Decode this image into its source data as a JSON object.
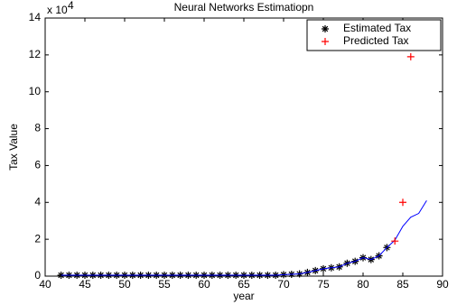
{
  "chart_data": {
    "type": "line",
    "title": "Neural Networks Estimatiopn",
    "xlabel": "year",
    "ylabel": "Tax Value",
    "y_scale": {
      "base": "x 10",
      "exponent": "4"
    },
    "xlim": [
      40,
      90
    ],
    "xticks": [
      40,
      45,
      50,
      55,
      60,
      65,
      70,
      75,
      80,
      85,
      90
    ],
    "ylim": [
      0,
      14
    ],
    "yticks": [
      0,
      2,
      4,
      6,
      8,
      10,
      12,
      14
    ],
    "legend": "top-right",
    "series": [
      {
        "name": "Estimated Tax",
        "color": "#000000",
        "marker": "star",
        "x": [
          42,
          43,
          44,
          45,
          46,
          47,
          48,
          49,
          50,
          51,
          52,
          53,
          54,
          55,
          56,
          57,
          58,
          59,
          60,
          61,
          62,
          63,
          64,
          65,
          66,
          67,
          68,
          69,
          70,
          71,
          72,
          73,
          74,
          75,
          76,
          77,
          78,
          79,
          80,
          81,
          82,
          83
        ],
        "values": [
          0.05,
          0.05,
          0.05,
          0.05,
          0.05,
          0.05,
          0.05,
          0.05,
          0.05,
          0.05,
          0.05,
          0.05,
          0.05,
          0.05,
          0.05,
          0.05,
          0.05,
          0.05,
          0.05,
          0.05,
          0.05,
          0.05,
          0.05,
          0.05,
          0.05,
          0.05,
          0.05,
          0.05,
          0.08,
          0.1,
          0.12,
          0.2,
          0.3,
          0.4,
          0.45,
          0.5,
          0.7,
          0.8,
          1.0,
          0.9,
          1.1,
          1.55
        ]
      },
      {
        "color": "#0000ff",
        "marker": "none",
        "x": [
          42,
          43,
          44,
          45,
          46,
          47,
          48,
          49,
          50,
          51,
          52,
          53,
          54,
          55,
          56,
          57,
          58,
          59,
          60,
          61,
          62,
          63,
          64,
          65,
          66,
          67,
          68,
          69,
          70,
          71,
          72,
          73,
          74,
          75,
          76,
          77,
          78,
          79,
          80,
          81,
          82,
          83,
          84,
          85,
          86,
          87,
          88
        ],
        "values": [
          0.05,
          0.05,
          0.05,
          0.05,
          0.05,
          0.05,
          0.05,
          0.05,
          0.05,
          0.05,
          0.05,
          0.05,
          0.05,
          0.05,
          0.05,
          0.05,
          0.05,
          0.05,
          0.05,
          0.05,
          0.05,
          0.05,
          0.05,
          0.05,
          0.05,
          0.05,
          0.05,
          0.05,
          0.08,
          0.1,
          0.12,
          0.2,
          0.3,
          0.4,
          0.45,
          0.5,
          0.7,
          0.8,
          1.0,
          0.9,
          1.1,
          1.55,
          1.95,
          2.7,
          3.2,
          3.4,
          4.1
        ]
      },
      {
        "name": "Predicted Tax",
        "color": "#ff0000",
        "marker": "plus",
        "x": [
          84,
          85,
          86
        ],
        "values": [
          1.9,
          4.0,
          11.9
        ]
      }
    ]
  }
}
